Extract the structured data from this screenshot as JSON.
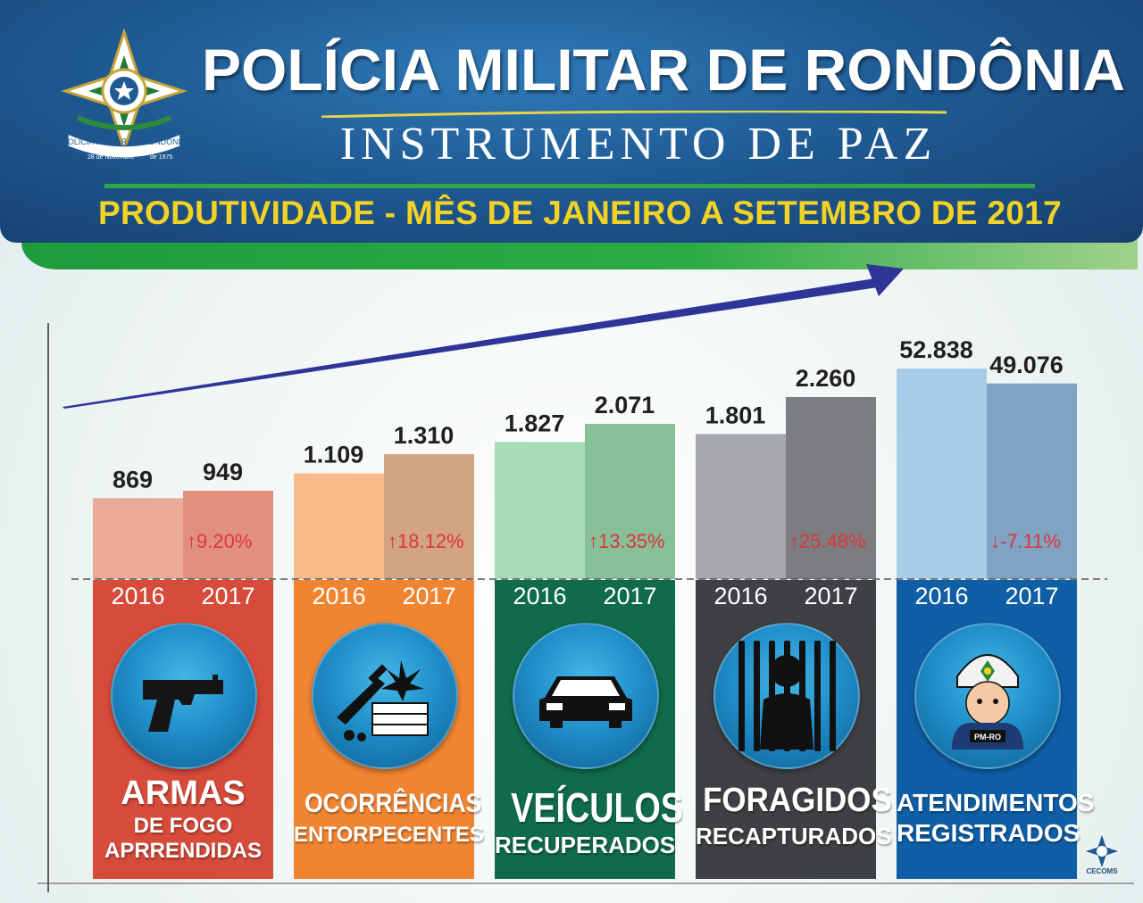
{
  "header": {
    "title": "POLÍCIA MILITAR DE RONDÔNIA",
    "subtitle": "INSTRUMENTO  DE  PAZ",
    "period": "PRODUTIVIDADE - MÊS DE JANEIRO A SETEMBRO DE 2017",
    "logo_text": "POLÍCIA MILITAR DE RONDÔNIA",
    "logo_date_left": "28 de Novembro",
    "logo_date_right": "de 1975"
  },
  "colors": {
    "header_blue": "#1f5a93",
    "period_yellow": "#f3d226",
    "accent_green": "#2fa84a",
    "arrow_blue": "#2e3596",
    "pct_red": "#e0353b"
  },
  "chart_data": {
    "type": "bar",
    "x_ticks": [
      "2016",
      "2017"
    ],
    "groups": [
      {
        "category_line1": "ARMAS",
        "category_line2": "DE FOGO",
        "category_line3": "APRRENDIDAS",
        "values": [
          869,
          949
        ],
        "labels": [
          "869",
          "949"
        ],
        "change": "9.20%",
        "direction": "up",
        "bar_colors": [
          "#eaa999",
          "#e2907e"
        ],
        "panel_color": "#d64b3a",
        "icon": "pistol-icon"
      },
      {
        "category_line1": "OCORRÊNCIAS",
        "category_line2": "ENTORPECENTES",
        "values": [
          1109,
          1310
        ],
        "labels": [
          "1.109",
          "1.310"
        ],
        "change": "18.12%",
        "direction": "up",
        "bar_colors": [
          "#f7bb8b",
          "#d2a482"
        ],
        "panel_color": "#f08431",
        "icon": "drugs-icon"
      },
      {
        "category_line1": "VEÍCULOS",
        "category_line2": "RECUPERADOS",
        "values": [
          1827,
          2071
        ],
        "labels": [
          "1.827",
          "2.071"
        ],
        "change": "13.35%",
        "direction": "up",
        "bar_colors": [
          "#a9dbb7",
          "#86bf98"
        ],
        "panel_color": "#0f6b4b",
        "icon": "car-icon"
      },
      {
        "category_line1": "FORAGIDOS",
        "category_line2": "RECAPTURADOS",
        "values": [
          1801,
          2260
        ],
        "labels": [
          "1.801",
          "2.260"
        ],
        "change": "25.48%",
        "direction": "up",
        "bar_colors": [
          "#a6a8ab",
          "#7b7d80"
        ],
        "panel_color": "#3f4043",
        "icon": "prisoner-icon"
      },
      {
        "category_line1": "ATENDIMENTOS",
        "category_line2": "REGISTRADOS",
        "values": [
          52838,
          49076
        ],
        "labels": [
          "52.838",
          "49.076"
        ],
        "change": "-7.11%",
        "direction": "down",
        "bar_colors": [
          "#a9cde8",
          "#7fa3c2"
        ],
        "panel_color": "#0f5ea6",
        "icon": "police-officer-icon",
        "badge": "PM-RO"
      }
    ],
    "trend_arrow": "up-right"
  },
  "footer": {
    "brand": "CECOMS"
  }
}
